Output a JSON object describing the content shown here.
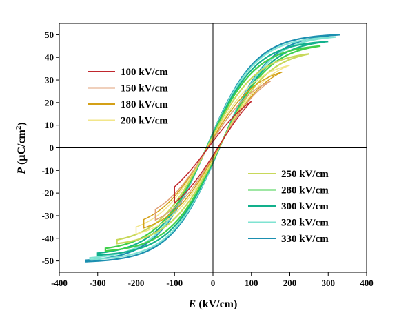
{
  "chart_data": {
    "type": "line",
    "title": "",
    "xlabel": {
      "symbol": "E",
      "unit": " (kV/cm)"
    },
    "ylabel": {
      "symbol": "P",
      "unit": " (μC/cm",
      "sup": "2",
      "close": ")"
    },
    "xlim": [
      -400,
      400
    ],
    "ylim": [
      -55,
      55
    ],
    "x_ticks": [
      -400,
      -300,
      -200,
      -100,
      0,
      100,
      200,
      300,
      400
    ],
    "y_ticks": [
      -50,
      -40,
      -30,
      -20,
      -10,
      0,
      10,
      20,
      30,
      40,
      50
    ],
    "x_tick_labels": [
      "-400",
      "-300",
      "-200",
      "-100",
      "0",
      "100",
      "200",
      "300",
      "400"
    ],
    "y_tick_labels": [
      "-50",
      "-40",
      "-30",
      "-20",
      "-10",
      "0",
      "10",
      "20",
      "30",
      "40",
      "50"
    ],
    "legend_groups": [
      {
        "placement": "top-left",
        "entries": [
          "100 kV/cm",
          "150 kV/cm",
          "180 kV/cm",
          "200 kV/cm"
        ]
      },
      {
        "placement": "bottom-right",
        "entries": [
          "250 kV/cm",
          "280 kV/cm",
          "300 kV/cm",
          "320 kV/cm",
          "330 kV/cm"
        ]
      }
    ],
    "series": [
      {
        "name": "100 kV/cm",
        "color": "#c0272d",
        "Emax": 100,
        "Pmax": 20.5,
        "Pr": 2.0
      },
      {
        "name": "150 kV/cm",
        "color": "#e0a078",
        "Emax": 150,
        "Pmax": 29.5,
        "Pr": 3.0
      },
      {
        "name": "180 kV/cm",
        "color": "#d4a017",
        "Emax": 180,
        "Pmax": 33.5,
        "Pr": 3.8
      },
      {
        "name": "200 kV/cm",
        "color": "#f2e68a",
        "Emax": 200,
        "Pmax": 36.5,
        "Pr": 4.3
      },
      {
        "name": "250 kV/cm",
        "color": "#c8d85a",
        "Emax": 250,
        "Pmax": 41.5,
        "Pr": 5.0
      },
      {
        "name": "280 kV/cm",
        "color": "#3fcf4a",
        "Emax": 280,
        "Pmax": 45.0,
        "Pr": 5.6
      },
      {
        "name": "300 kV/cm",
        "color": "#12b08c",
        "Emax": 300,
        "Pmax": 47.0,
        "Pr": 6.0
      },
      {
        "name": "320 kV/cm",
        "color": "#7fe3d2",
        "Emax": 320,
        "Pmax": 49.0,
        "Pr": 6.4
      },
      {
        "name": "330 kV/cm",
        "color": "#1b8fb0",
        "Emax": 330,
        "Pmax": 50.0,
        "Pr": 6.6
      }
    ],
    "grid": false,
    "reference_lines": {
      "x": 0,
      "y": 0
    }
  }
}
